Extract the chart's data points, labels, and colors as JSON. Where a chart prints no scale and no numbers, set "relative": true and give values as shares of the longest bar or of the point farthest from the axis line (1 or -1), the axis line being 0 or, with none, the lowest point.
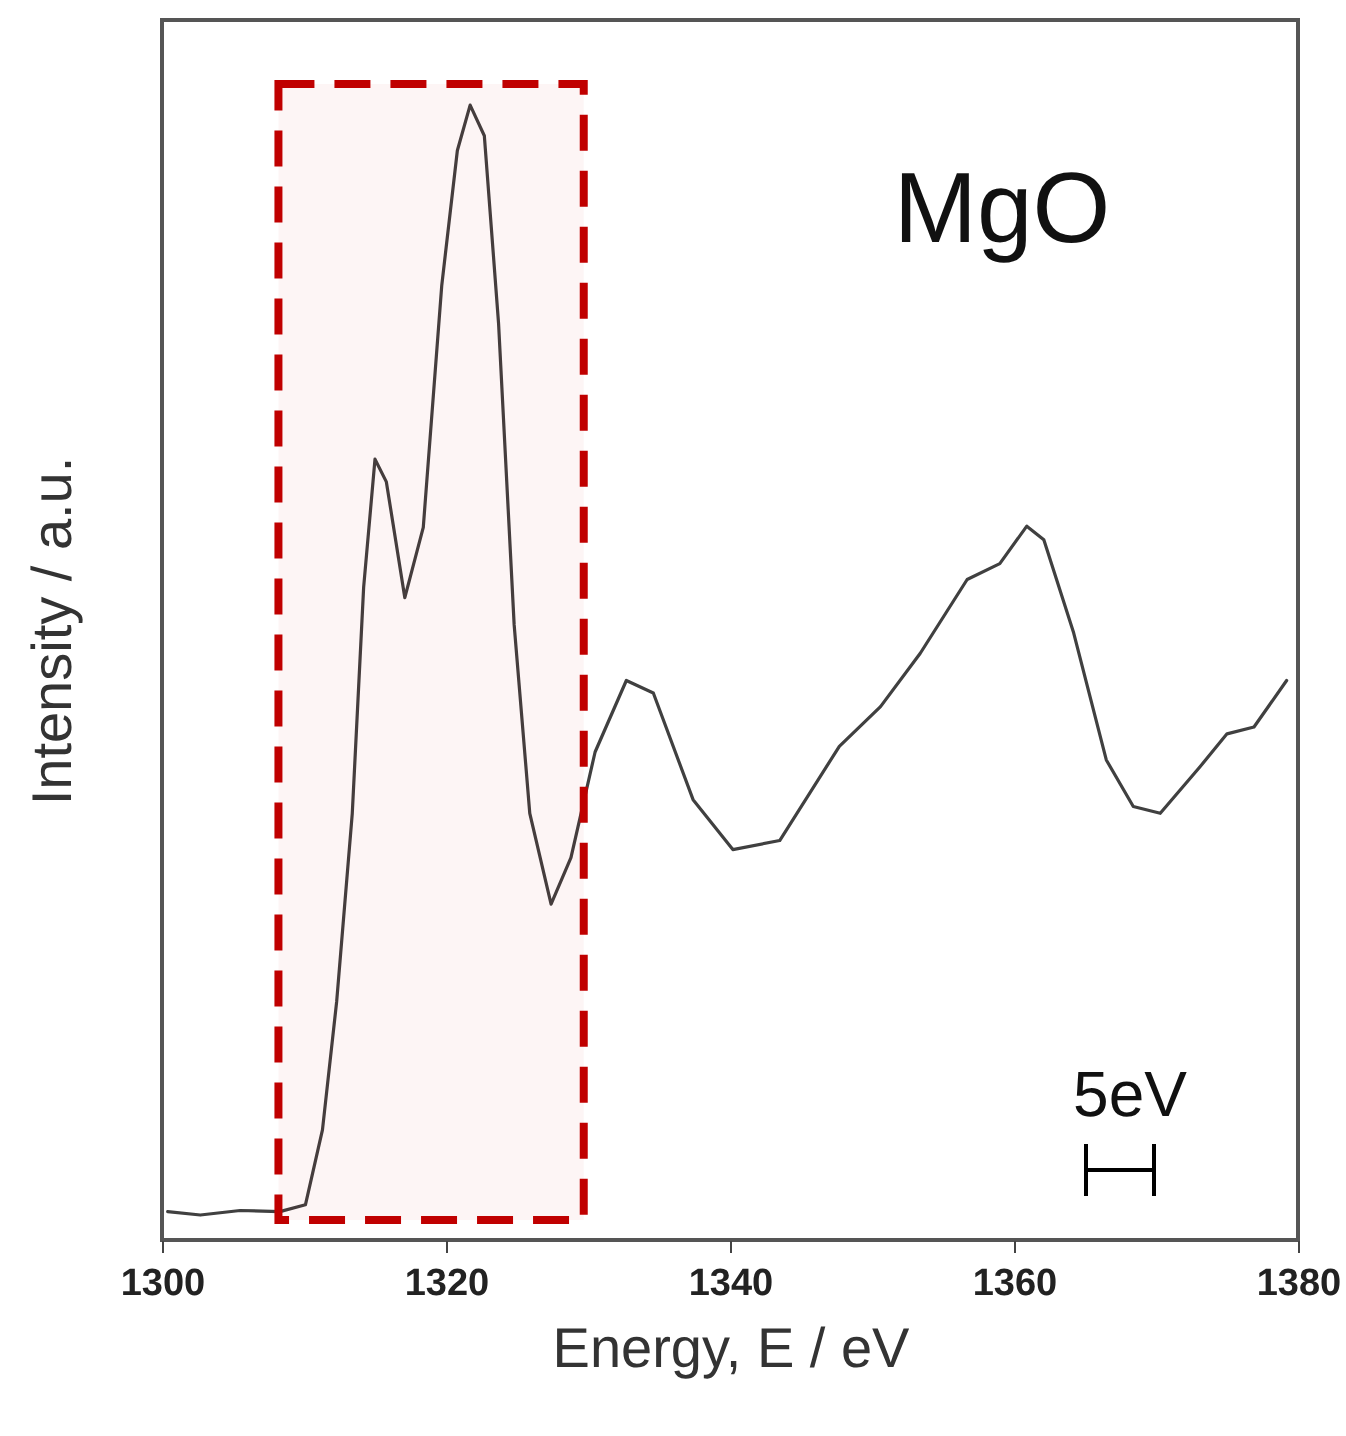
{
  "chart_data": {
    "type": "line",
    "relative": true,
    "xlabel": "Energy, E / eV",
    "ylabel": "Intensity / a.u.",
    "xlim": [
      1300,
      1380
    ],
    "xticks": [
      1300,
      1320,
      1340,
      1360,
      1380
    ],
    "grid": false,
    "marker": "none",
    "line_style": "solid",
    "annotations": [
      "MgO",
      "5eV"
    ],
    "bands": [
      {
        "axis": "x",
        "from": 1308.2,
        "to": 1329.7,
        "label": null,
        "color": "#c00000"
      }
    ],
    "series": [
      {
        "color": "#404040",
        "x": [
          1300.4,
          1302.7,
          1305.5,
          1308.3,
          1310.1,
          1311.3,
          1312.3,
          1313.4,
          1314.2,
          1315.0,
          1315.8,
          1317.1,
          1318.4,
          1319.7,
          1320.8,
          1321.7,
          1322.7,
          1323.7,
          1324.8,
          1325.9,
          1327.4,
          1328.8,
          1330.5,
          1332.7,
          1334.6,
          1337.4,
          1340.2,
          1343.5,
          1347.7,
          1350.6,
          1353.4,
          1356.7,
          1359.0,
          1360.9,
          1362.1,
          1364.2,
          1366.5,
          1368.4,
          1370.3,
          1373.1,
          1375.0,
          1376.9,
          1379.2
        ],
        "values": [
          0.025,
          0.022,
          0.026,
          0.025,
          0.031,
          0.097,
          0.21,
          0.376,
          0.575,
          0.688,
          0.668,
          0.566,
          0.628,
          0.841,
          0.96,
          1.0,
          0.973,
          0.808,
          0.542,
          0.376,
          0.296,
          0.337,
          0.43,
          0.493,
          0.482,
          0.388,
          0.344,
          0.352,
          0.435,
          0.47,
          0.517,
          0.582,
          0.596,
          0.629,
          0.617,
          0.535,
          0.423,
          0.382,
          0.376,
          0.417,
          0.446,
          0.452,
          0.493
        ]
      }
    ]
  }
}
